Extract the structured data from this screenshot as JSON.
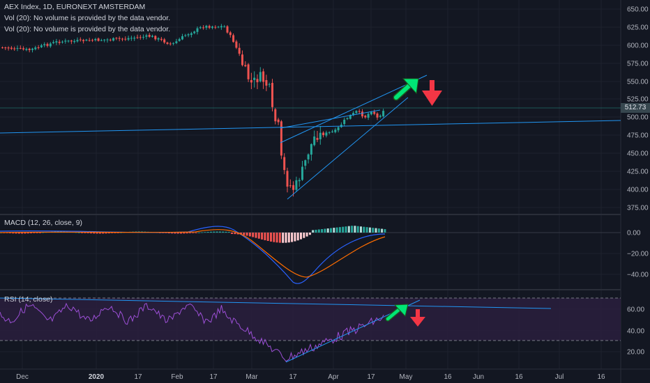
{
  "legend": {
    "symbol": "AEX Index, 1D, EURONEXT AMSTERDAM",
    "vol1": "Vol (20): No volume is provided by the data vendor.",
    "vol2": "Vol (20): No volume is provided by the data vendor.",
    "macd": "MACD (12, 26, close, 9)",
    "rsi": "RSI (14, close)"
  },
  "last_price": "512.73",
  "price_axis": [
    "650.00",
    "625.00",
    "600.00",
    "575.00",
    "550.00",
    "525.00",
    "500.00",
    "475.00",
    "450.00",
    "425.00",
    "400.00",
    "375.00"
  ],
  "macd_axis": [
    "0.00",
    "−20.00",
    "−40.00"
  ],
  "rsi_axis": [
    "60.00",
    "40.00",
    "20.00"
  ],
  "time_axis": [
    {
      "label": "Dec",
      "bold": false
    },
    {
      "label": "2020",
      "bold": true
    },
    {
      "label": "17",
      "bold": false
    },
    {
      "label": "Feb",
      "bold": false
    },
    {
      "label": "17",
      "bold": false
    },
    {
      "label": "Mar",
      "bold": false
    },
    {
      "label": "17",
      "bold": false
    },
    {
      "label": "Apr",
      "bold": false
    },
    {
      "label": "17",
      "bold": false
    },
    {
      "label": "May",
      "bold": false
    },
    {
      "label": "16",
      "bold": false
    },
    {
      "label": "Jun",
      "bold": false
    },
    {
      "label": "16",
      "bold": false
    },
    {
      "label": "Jul",
      "bold": false
    },
    {
      "label": "16",
      "bold": false
    }
  ],
  "colors": {
    "background": "#131722",
    "up": "#26a69a",
    "down": "#ef5350",
    "trendline": "#2196f3",
    "macd_line": "#2962ff",
    "signal_line": "#ff6d00",
    "rsi_line": "#7e57c2",
    "rsi_band": "#2a1f3d",
    "arrow_up": "#00e676",
    "arrow_down": "#f23645"
  },
  "icons": [
    "green-up-arrow-icon",
    "red-down-arrow-icon"
  ]
}
